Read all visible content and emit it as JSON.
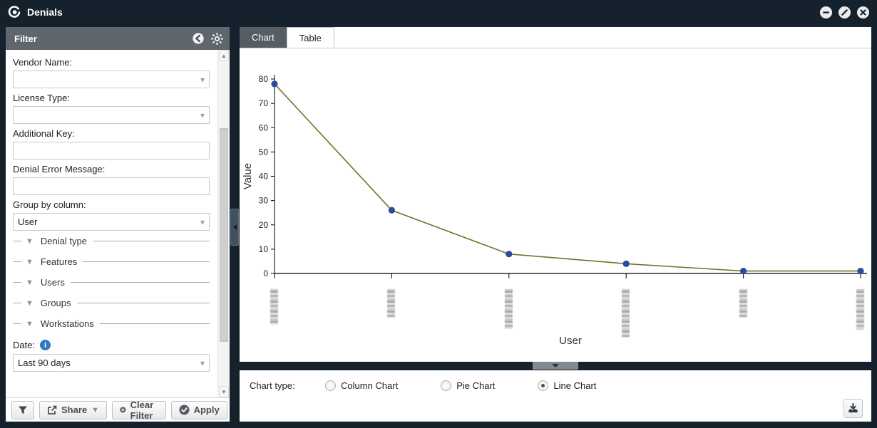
{
  "window": {
    "title": "Denials",
    "controls": {
      "minimize": "minimize",
      "restore": "restore",
      "close": "close"
    }
  },
  "filter_panel": {
    "header": {
      "title": "Filter"
    },
    "fields": [
      {
        "label": "Vendor Name:",
        "type": "select",
        "value": ""
      },
      {
        "label": "License Type:",
        "type": "select",
        "value": ""
      },
      {
        "label": "Additional Key:",
        "type": "text",
        "value": ""
      },
      {
        "label": "Denial Error Message:",
        "type": "text",
        "value": ""
      },
      {
        "label": "Group by column:",
        "type": "select",
        "value": "User"
      }
    ],
    "sections": [
      {
        "label": "Denial type"
      },
      {
        "label": "Features"
      },
      {
        "label": "Users"
      },
      {
        "label": "Groups"
      },
      {
        "label": "Workstations"
      }
    ],
    "date": {
      "label": "Date:",
      "value": "Last 90 days"
    },
    "footer": {
      "share_label": "Share",
      "clear_label": "Clear Filter",
      "apply_label": "Apply"
    }
  },
  "tabs": [
    {
      "label": "Chart",
      "active": true
    },
    {
      "label": "Table",
      "active": false
    }
  ],
  "chart_data": {
    "type": "line",
    "categories": [
      "[blurred user 1]",
      "[blurred user 2]",
      "[blurred user 3]",
      "[blurred user 4]",
      "[blurred user 5]",
      "[blurred user 6]"
    ],
    "values": [
      78,
      26,
      8,
      4,
      1,
      1
    ],
    "title": "",
    "xlabel": "User",
    "ylabel": "Value",
    "ylim": [
      0,
      80
    ],
    "ytick_step": 10,
    "x_labels_blurred": true,
    "grid": false,
    "line_color": "#72722b",
    "point_color": "#2a4c9c"
  },
  "chart_type_bar": {
    "label": "Chart type:",
    "options": [
      {
        "label": "Column Chart",
        "selected": false
      },
      {
        "label": "Pie Chart",
        "selected": false
      },
      {
        "label": "Line Chart",
        "selected": true
      }
    ]
  },
  "colors": {
    "frame": "#15222e",
    "panel_header": "#5f666d",
    "active_tab": "#575d64",
    "info_blue": "#2e7ac0",
    "line_olive": "#72722b",
    "point_blue": "#2a4c9c"
  }
}
